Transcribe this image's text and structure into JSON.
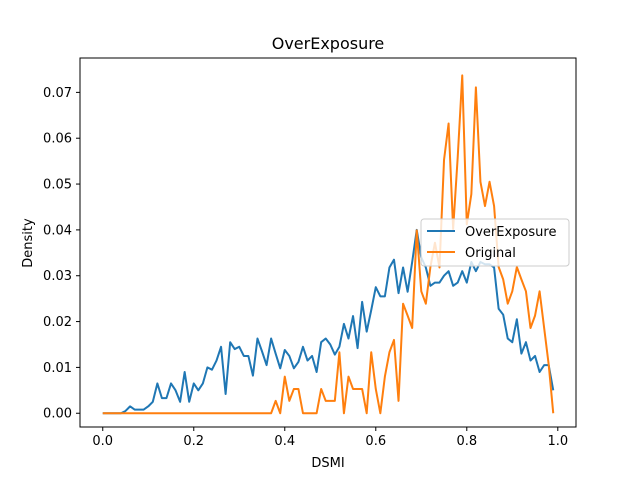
{
  "chart_data": {
    "type": "line",
    "title": "OverExposure",
    "xlabel": "DSMI",
    "ylabel": "Density",
    "xlim": [
      -0.05,
      1.04
    ],
    "ylim": [
      -0.003,
      0.0775
    ],
    "xticks": [
      0.0,
      0.2,
      0.4,
      0.6,
      0.8,
      1.0
    ],
    "xtick_labels": [
      "0.0",
      "0.2",
      "0.4",
      "0.6",
      "0.8",
      "1.0"
    ],
    "yticks": [
      0.0,
      0.01,
      0.02,
      0.03,
      0.04,
      0.05,
      0.06,
      0.07
    ],
    "ytick_labels": [
      "0.00",
      "0.01",
      "0.02",
      "0.03",
      "0.04",
      "0.05",
      "0.06",
      "0.07"
    ],
    "grid": false,
    "legend_position": "center-right",
    "colors": {
      "OverExposure": "#1f77b4",
      "Original": "#ff7f0e"
    },
    "series": [
      {
        "name": "OverExposure",
        "x": [
          0.0,
          0.01,
          0.02,
          0.03,
          0.04,
          0.05,
          0.06,
          0.07,
          0.08,
          0.09,
          0.1,
          0.11,
          0.12,
          0.13,
          0.14,
          0.15,
          0.16,
          0.17,
          0.18,
          0.19,
          0.2,
          0.21,
          0.22,
          0.23,
          0.24,
          0.25,
          0.26,
          0.27,
          0.28,
          0.29,
          0.3,
          0.31,
          0.32,
          0.33,
          0.34,
          0.35,
          0.36,
          0.37,
          0.38,
          0.39,
          0.4,
          0.41,
          0.42,
          0.43,
          0.44,
          0.45,
          0.46,
          0.47,
          0.48,
          0.49,
          0.5,
          0.51,
          0.52,
          0.53,
          0.54,
          0.55,
          0.56,
          0.57,
          0.58,
          0.59,
          0.6,
          0.61,
          0.62,
          0.63,
          0.64,
          0.65,
          0.66,
          0.67,
          0.68,
          0.69,
          0.7,
          0.71,
          0.72,
          0.73,
          0.74,
          0.75,
          0.76,
          0.77,
          0.78,
          0.79,
          0.8,
          0.81,
          0.82,
          0.83,
          0.84,
          0.85,
          0.86,
          0.87,
          0.88,
          0.89,
          0.9,
          0.91,
          0.92,
          0.93,
          0.94,
          0.95,
          0.96,
          0.97,
          0.98,
          0.99
        ],
        "y": [
          0.0,
          0.0,
          0.0,
          0.0,
          0.0,
          0.0005,
          0.0015,
          0.0008,
          0.0008,
          0.0008,
          0.0015,
          0.0025,
          0.0065,
          0.0033,
          0.0033,
          0.0065,
          0.005,
          0.0025,
          0.009,
          0.0025,
          0.0065,
          0.005,
          0.0065,
          0.01,
          0.0095,
          0.0115,
          0.0145,
          0.0042,
          0.0155,
          0.014,
          0.0145,
          0.0125,
          0.0125,
          0.0082,
          0.0163,
          0.0135,
          0.0105,
          0.0163,
          0.013,
          0.0098,
          0.0138,
          0.0125,
          0.0098,
          0.0112,
          0.0145,
          0.0115,
          0.0125,
          0.009,
          0.0155,
          0.0163,
          0.015,
          0.0128,
          0.0145,
          0.0195,
          0.0163,
          0.0212,
          0.0142,
          0.0243,
          0.0178,
          0.0225,
          0.0275,
          0.0255,
          0.0255,
          0.0318,
          0.0335,
          0.0262,
          0.0318,
          0.0265,
          0.033,
          0.04,
          0.034,
          0.0318,
          0.0278,
          0.0285,
          0.0285,
          0.03,
          0.031,
          0.0278,
          0.0285,
          0.031,
          0.0285,
          0.033,
          0.031,
          0.033,
          0.0325,
          0.0325,
          0.0318,
          0.0228,
          0.0215,
          0.0163,
          0.0155,
          0.0205,
          0.013,
          0.0155,
          0.0115,
          0.0125,
          0.009,
          0.0105,
          0.0105,
          0.005
        ]
      },
      {
        "name": "Original",
        "x": [
          0.0,
          0.01,
          0.02,
          0.03,
          0.04,
          0.05,
          0.06,
          0.07,
          0.08,
          0.09,
          0.1,
          0.11,
          0.12,
          0.13,
          0.14,
          0.15,
          0.16,
          0.17,
          0.18,
          0.19,
          0.2,
          0.21,
          0.22,
          0.23,
          0.24,
          0.25,
          0.26,
          0.27,
          0.28,
          0.29,
          0.3,
          0.31,
          0.32,
          0.33,
          0.34,
          0.35,
          0.36,
          0.37,
          0.38,
          0.39,
          0.4,
          0.41,
          0.42,
          0.43,
          0.44,
          0.45,
          0.46,
          0.47,
          0.48,
          0.49,
          0.5,
          0.51,
          0.52,
          0.53,
          0.54,
          0.55,
          0.56,
          0.57,
          0.58,
          0.59,
          0.6,
          0.61,
          0.62,
          0.63,
          0.64,
          0.65,
          0.66,
          0.67,
          0.68,
          0.69,
          0.7,
          0.71,
          0.72,
          0.73,
          0.74,
          0.75,
          0.76,
          0.77,
          0.78,
          0.79,
          0.8,
          0.81,
          0.82,
          0.83,
          0.84,
          0.85,
          0.86,
          0.87,
          0.88,
          0.89,
          0.9,
          0.91,
          0.92,
          0.93,
          0.94,
          0.95,
          0.96,
          0.97,
          0.98,
          0.99
        ],
        "y": [
          0.0,
          0.0,
          0.0,
          0.0,
          0.0,
          0.0,
          0.0,
          0.0,
          0.0,
          0.0,
          0.0,
          0.0,
          0.0,
          0.0,
          0.0,
          0.0,
          0.0,
          0.0,
          0.0,
          0.0,
          0.0,
          0.0,
          0.0,
          0.0,
          0.0,
          0.0,
          0.0,
          0.0,
          0.0,
          0.0,
          0.0,
          0.0,
          0.0,
          0.0,
          0.0,
          0.0,
          0.0,
          0.0,
          0.0027,
          0.0,
          0.008,
          0.0027,
          0.0053,
          0.0053,
          0.0,
          0.0,
          0.0,
          0.0,
          0.0053,
          0.0027,
          0.0027,
          0.0027,
          0.0133,
          0.0,
          0.008,
          0.0053,
          0.0053,
          0.0053,
          0.0,
          0.0133,
          0.0053,
          0.0,
          0.008,
          0.0133,
          0.016,
          0.0027,
          0.0239,
          0.0213,
          0.0186,
          0.0399,
          0.0266,
          0.0239,
          0.0319,
          0.0372,
          0.0318,
          0.0553,
          0.0632,
          0.0402,
          0.0558,
          0.0737,
          0.0412,
          0.0478,
          0.0711,
          0.0505,
          0.0452,
          0.0505,
          0.0452,
          0.0319,
          0.0292,
          0.0239,
          0.0266,
          0.0319,
          0.0292,
          0.0266,
          0.0186,
          0.0213,
          0.0266,
          0.0186,
          0.0106,
          0.0
        ]
      }
    ]
  }
}
